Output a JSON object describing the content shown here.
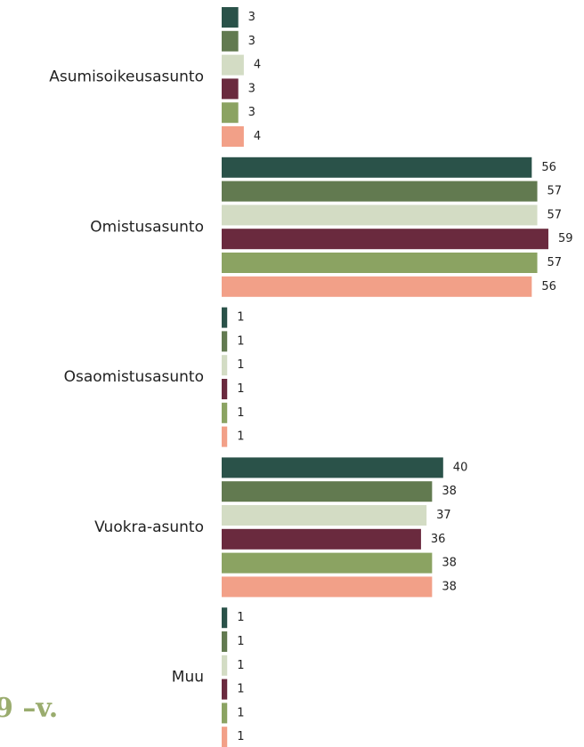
{
  "chart_data": {
    "type": "bar",
    "orientation": "horizontal",
    "categories": [
      "Asumisoikeusasunto",
      "Omistusasunto",
      "Osaomistusasunto",
      "Vuokra-asunto",
      "Muu"
    ],
    "series": [
      {
        "color": "#2a5249",
        "values": [
          3,
          56,
          1,
          40,
          1
        ]
      },
      {
        "color": "#627a50",
        "values": [
          3,
          57,
          1,
          38,
          1
        ]
      },
      {
        "color": "#d3dcc4",
        "values": [
          4,
          57,
          1,
          37,
          1
        ]
      },
      {
        "color": "#6a2a3e",
        "values": [
          3,
          59,
          1,
          36,
          1
        ]
      },
      {
        "color": "#8ba362",
        "values": [
          3,
          57,
          1,
          38,
          1
        ]
      },
      {
        "color": "#f2a088",
        "values": [
          4,
          56,
          1,
          38,
          1
        ]
      }
    ],
    "annotation": "9 –v."
  }
}
